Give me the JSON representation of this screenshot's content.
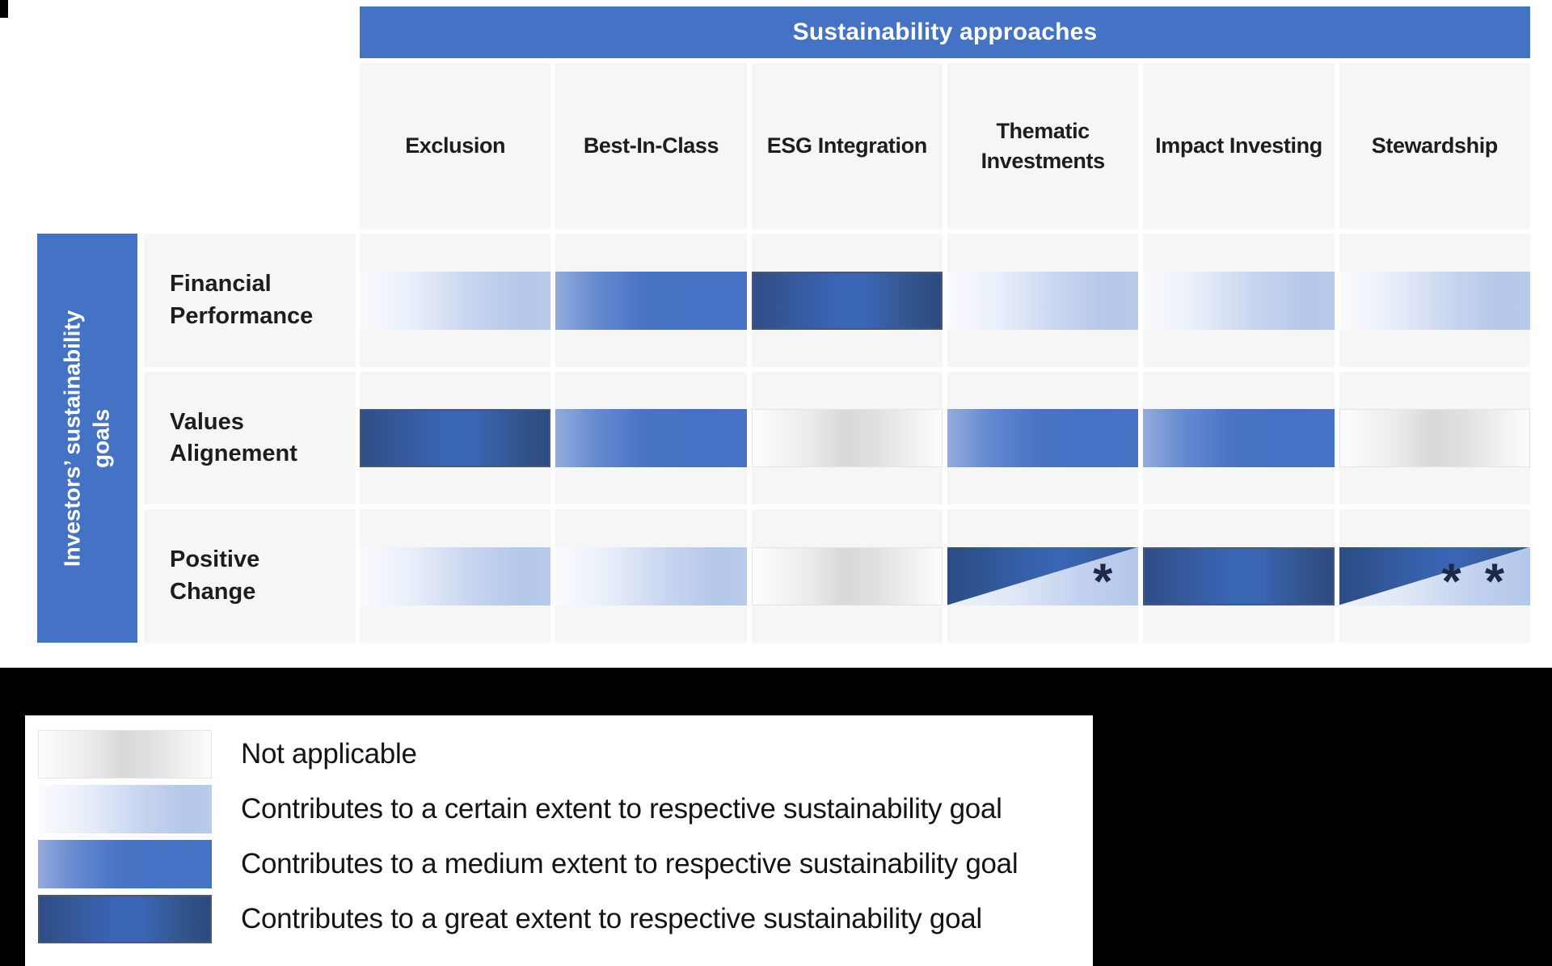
{
  "chart_data": {
    "type": "heatmap",
    "title": "Sustainability approaches",
    "ylabel": "Investors’ sustainability\ngoals",
    "x_categories": [
      "Exclusion",
      "Best-In-Class",
      "ESG Integration",
      "Thematic\nInvestments",
      "Impact Investing",
      "Stewardship"
    ],
    "y_categories": [
      "Financial\nPerformance",
      "Values\nAlignement",
      "Positive\nChange"
    ],
    "values": [
      [
        "certain",
        "medium",
        "great",
        "certain",
        "certain",
        "certain"
      ],
      [
        "great",
        "medium",
        "not_applicable",
        "medium",
        "medium",
        "not_applicable"
      ],
      [
        "certain",
        "certain",
        "not_applicable",
        "split_great_certain_single",
        "great",
        "split_great_certain_double"
      ]
    ],
    "cell_markers": {
      "split_great_certain_single": "*",
      "split_great_certain_double": "* *"
    },
    "legend": [
      {
        "type": "not_applicable",
        "label": "Not applicable"
      },
      {
        "type": "certain",
        "label": "Contributes to a certain extent to respective sustainability goal"
      },
      {
        "type": "medium",
        "label": "Contributes to a medium extent to respective sustainability goal"
      },
      {
        "type": "great",
        "label": "Contributes to a great extent to respective sustainability goal"
      }
    ],
    "legend_position": "bottom-left"
  },
  "colors": {
    "header_blue": "#4472c4",
    "medium_blue": "#4472c4",
    "light_blue": "#b4c7e9",
    "dark_navy": "#2e4d85",
    "na_gray": "#d9d9d9",
    "band_black": "#000000"
  }
}
